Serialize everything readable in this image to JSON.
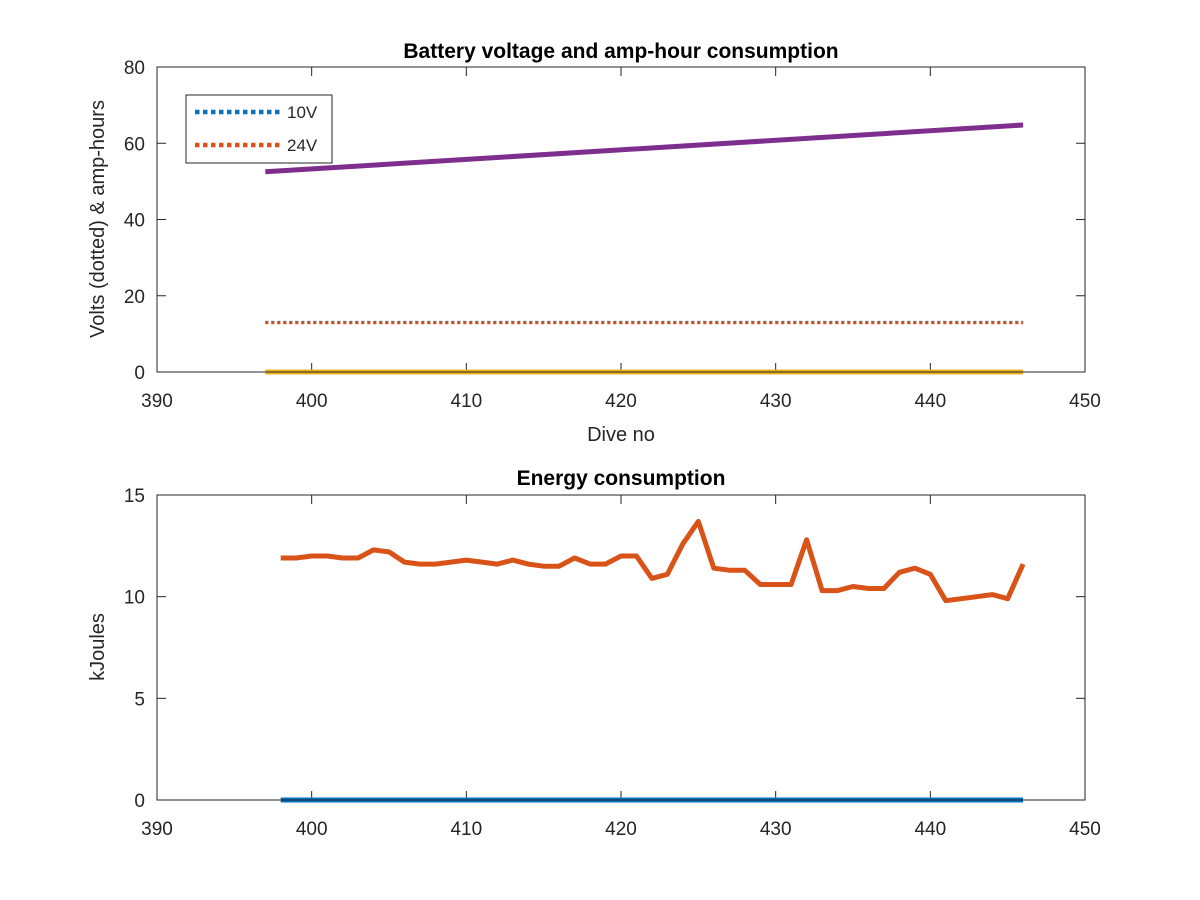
{
  "chart_data": [
    {
      "type": "line",
      "title": "Battery voltage and amp-hour consumption",
      "xlabel": "Dive no",
      "ylabel": "Volts (dotted) & amp-hours",
      "xlim": [
        390,
        450
      ],
      "ylim": [
        0,
        80
      ],
      "xticks": [
        "390",
        "400",
        "410",
        "420",
        "430",
        "440",
        "450"
      ],
      "yticks": [
        "0",
        "20",
        "40",
        "60",
        "80"
      ],
      "grid": false,
      "legend_position": "top-left",
      "series": [
        {
          "name": "10V",
          "style": "dotted",
          "color": "#0072BD",
          "x": [
            397,
            446
          ],
          "y": [
            13,
            13
          ]
        },
        {
          "name": "24V",
          "style": "dotted",
          "color": "#D95319",
          "x": [
            397,
            446
          ],
          "y": [
            12.9,
            12.9
          ]
        },
        {
          "style": "solid",
          "color": "#EDB120",
          "x": [
            397,
            446
          ],
          "y": [
            0,
            0
          ]
        },
        {
          "style": "solid",
          "color": "#7E2F8E",
          "x": [
            397,
            446
          ],
          "y": [
            52.5,
            64.8
          ]
        }
      ]
    },
    {
      "type": "line",
      "title": "Energy consumption",
      "xlabel": "",
      "ylabel": "kJoules",
      "xlim": [
        390,
        450
      ],
      "ylim": [
        0,
        15
      ],
      "xticks": [
        "390",
        "400",
        "410",
        "420",
        "430",
        "440",
        "450"
      ],
      "yticks": [
        "0",
        "5",
        "10",
        "15"
      ],
      "grid": false,
      "series": [
        {
          "style": "solid",
          "color": "#0072BD",
          "x": [
            398,
            446
          ],
          "y": [
            0,
            0
          ]
        },
        {
          "style": "solid",
          "color": "#D95319",
          "x": [
            398,
            399,
            400,
            401,
            402,
            403,
            404,
            405,
            406,
            407,
            408,
            409,
            410,
            411,
            412,
            413,
            414,
            415,
            416,
            417,
            418,
            419,
            420,
            421,
            422,
            423,
            424,
            425,
            426,
            427,
            428,
            429,
            430,
            431,
            432,
            433,
            434,
            435,
            436,
            437,
            438,
            439,
            440,
            441,
            442,
            443,
            444,
            445,
            446
          ],
          "y": [
            11.9,
            11.9,
            12.0,
            12.0,
            11.9,
            11.9,
            12.3,
            12.2,
            11.7,
            11.6,
            11.6,
            11.7,
            11.8,
            11.7,
            11.6,
            11.8,
            11.6,
            11.5,
            11.5,
            11.9,
            11.6,
            11.6,
            12.0,
            12.0,
            10.9,
            11.1,
            12.6,
            13.7,
            11.4,
            11.3,
            11.3,
            10.6,
            10.6,
            10.6,
            12.8,
            10.3,
            10.3,
            10.5,
            10.4,
            10.4,
            11.2,
            11.4,
            11.1,
            9.8,
            9.9,
            10.0,
            10.1,
            9.9,
            11.6
          ]
        }
      ]
    }
  ]
}
